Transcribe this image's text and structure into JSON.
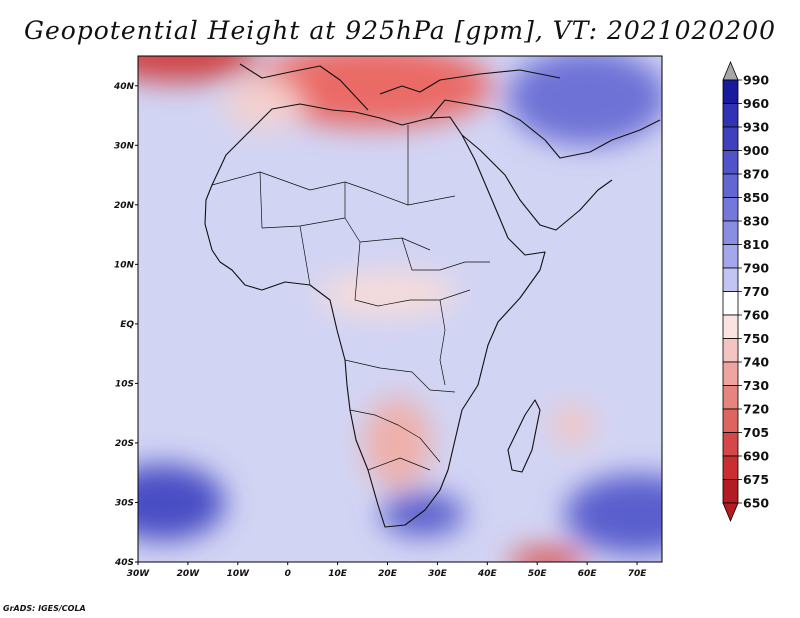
{
  "title": "Geopotential Height at 925hPa [gpm], VT: 2021020200",
  "credit": "GrADS: IGES/COLA",
  "map": {
    "variable": "Geopotential Height",
    "level": "925hPa",
    "units": "gpm",
    "valid_time": "2021020200",
    "lon_range": [
      -30,
      75
    ],
    "lat_range": [
      -40,
      45
    ],
    "lon_ticks": [
      {
        "value": -30,
        "label": "30W"
      },
      {
        "value": -20,
        "label": "20W"
      },
      {
        "value": -10,
        "label": "10W"
      },
      {
        "value": 0,
        "label": "0"
      },
      {
        "value": 10,
        "label": "10E"
      },
      {
        "value": 20,
        "label": "20E"
      },
      {
        "value": 30,
        "label": "30E"
      },
      {
        "value": 40,
        "label": "40E"
      },
      {
        "value": 50,
        "label": "50E"
      },
      {
        "value": 60,
        "label": "60E"
      },
      {
        "value": 70,
        "label": "70E"
      }
    ],
    "lat_ticks": [
      {
        "value": 40,
        "label": "40N"
      },
      {
        "value": 30,
        "label": "30N"
      },
      {
        "value": 20,
        "label": "20N"
      },
      {
        "value": 10,
        "label": "10N"
      },
      {
        "value": 0,
        "label": "EQ"
      },
      {
        "value": -10,
        "label": "10S"
      },
      {
        "value": -20,
        "label": "20S"
      },
      {
        "value": -30,
        "label": "30S"
      },
      {
        "value": -40,
        "label": "40S"
      }
    ],
    "background_color": "#d2d4f4",
    "features": [
      {
        "name": "mediterranean-low",
        "lon": 17,
        "lat": 40,
        "value": 690,
        "color": "#ea6a66"
      },
      {
        "name": "northwest-corner-low",
        "lon": -22,
        "lat": 45,
        "value": 700,
        "color": "#cf4446"
      },
      {
        "name": "iberia-trough",
        "lon": -5,
        "lat": 37,
        "value": 760,
        "color": "#f4d0cd"
      },
      {
        "name": "sahel-heat-low",
        "lon": 20,
        "lat": 5,
        "value": 760,
        "color": "#f6dcd9"
      },
      {
        "name": "kalahari-heat-low",
        "lon": 22,
        "lat": -20,
        "value": 740,
        "color": "#eeb0ab"
      },
      {
        "name": "mozambique-channel-low",
        "lon": 57,
        "lat": -17,
        "value": 750,
        "color": "#f4c4c0"
      },
      {
        "name": "south-atlantic-high",
        "lon": -25,
        "lat": -30,
        "value": 900,
        "color": "#4a4ec4"
      },
      {
        "name": "south-indian-high",
        "lon": 70,
        "lat": -32,
        "value": 880,
        "color": "#5a5fce"
      },
      {
        "name": "arabian-high",
        "lon": 60,
        "lat": 38,
        "value": 870,
        "color": "#6e72d6"
      },
      {
        "name": "southern-ocean-low",
        "lon": 52,
        "lat": -40,
        "value": 700,
        "color": "#d9534f"
      },
      {
        "name": "south-africa-cold-high",
        "lon": 27,
        "lat": -32,
        "value": 850,
        "color": "#5c60cd"
      }
    ]
  },
  "colorbar": {
    "levels": [
      "990",
      "960",
      "930",
      "900",
      "870",
      "850",
      "830",
      "810",
      "790",
      "770",
      "760",
      "750",
      "740",
      "730",
      "720",
      "705",
      "690",
      "675",
      "650"
    ],
    "colors": [
      "#a8a8a8",
      "#1a1a9c",
      "#3232b4",
      "#4040be",
      "#5054c8",
      "#6266d2",
      "#7478da",
      "#8a8ee2",
      "#a3a7eb",
      "#c2c5f4",
      "#ffffff",
      "#fbe3e1",
      "#f4c4c0",
      "#eea4a0",
      "#e68480",
      "#de6460",
      "#d4484a",
      "#c82e32",
      "#b21c22"
    ]
  }
}
